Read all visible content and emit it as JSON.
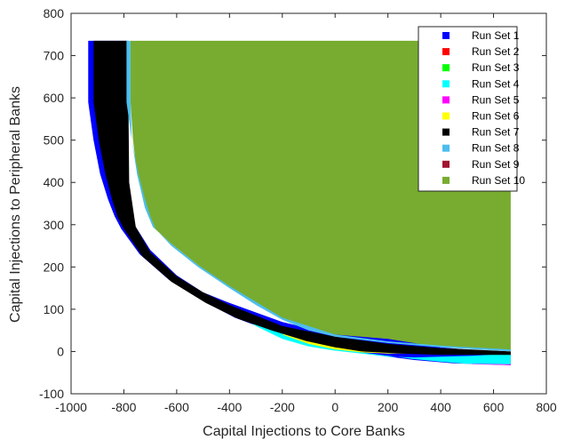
{
  "chart_data": {
    "type": "area",
    "title": "",
    "xlabel": "Capital Injections to Core Banks",
    "ylabel": "Capital Injections to Peripheral Banks",
    "xlim": [
      -1000,
      800
    ],
    "ylim": [
      -100,
      800
    ],
    "xticks": [
      -1000,
      -800,
      -600,
      -400,
      -200,
      0,
      200,
      400,
      600,
      800
    ],
    "yticks": [
      -100,
      0,
      100,
      200,
      300,
      400,
      500,
      600,
      700,
      800
    ],
    "grid": false,
    "legend_position": "top-right",
    "series": [
      {
        "name": "Run Set 1",
        "color": "#0000ff",
        "polygon": [
          [
            -935,
            735
          ],
          [
            -935,
            590
          ],
          [
            -915,
            500
          ],
          [
            -890,
            420
          ],
          [
            -860,
            360
          ],
          [
            -835,
            320
          ],
          [
            -810,
            290
          ],
          [
            -740,
            230
          ],
          [
            -630,
            170
          ],
          [
            -500,
            120
          ],
          [
            -380,
            80
          ],
          [
            -250,
            50
          ],
          [
            -120,
            25
          ],
          [
            0,
            8
          ],
          [
            150,
            -8
          ],
          [
            300,
            -20
          ],
          [
            450,
            -28
          ],
          [
            665,
            -32
          ],
          [
            665,
            -5
          ],
          [
            400,
            10
          ],
          [
            200,
            30
          ],
          [
            0,
            40
          ],
          [
            -200,
            70
          ],
          [
            -400,
            115
          ],
          [
            -500,
            140
          ],
          [
            -600,
            180
          ],
          [
            -700,
            240
          ],
          [
            -760,
            300
          ],
          [
            -790,
            400
          ],
          [
            -790,
            735
          ]
        ]
      },
      {
        "name": "Run Set 2",
        "color": "#ff0000",
        "polygon": []
      },
      {
        "name": "Run Set 3",
        "color": "#00ff00",
        "polygon": []
      },
      {
        "name": "Run Set 4",
        "color": "#00ffff",
        "polygon": [
          [
            665,
            -5
          ],
          [
            520,
            -10
          ],
          [
            400,
            -12
          ],
          [
            300,
            -14
          ],
          [
            200,
            -12
          ],
          [
            100,
            -5
          ],
          [
            0,
            2
          ],
          [
            -100,
            12
          ],
          [
            -200,
            30
          ],
          [
            -300,
            60
          ],
          [
            -400,
            100
          ],
          [
            -300,
            72
          ],
          [
            -200,
            45
          ],
          [
            -100,
            22
          ],
          [
            0,
            8
          ],
          [
            100,
            -2
          ],
          [
            200,
            -10
          ],
          [
            300,
            -18
          ],
          [
            400,
            -24
          ],
          [
            500,
            -29
          ],
          [
            665,
            -30
          ]
        ]
      },
      {
        "name": "Run Set 5",
        "color": "#ff00ff",
        "polygon": [
          [
            665,
            -32
          ],
          [
            520,
            -30
          ],
          [
            450,
            -20
          ],
          [
            540,
            -10
          ],
          [
            665,
            -5
          ]
        ]
      },
      {
        "name": "Run Set 6",
        "color": "#ffff00",
        "polygon": [
          [
            665,
            -5
          ],
          [
            400,
            -2
          ],
          [
            300,
            -5
          ],
          [
            200,
            -5
          ],
          [
            100,
            -2
          ],
          [
            0,
            5
          ],
          [
            -100,
            18
          ],
          [
            -200,
            40
          ],
          [
            -150,
            50
          ],
          [
            -50,
            40
          ],
          [
            50,
            30
          ],
          [
            150,
            20
          ],
          [
            300,
            10
          ],
          [
            450,
            2
          ],
          [
            665,
            0
          ]
        ]
      },
      {
        "name": "Run Set 7",
        "color": "#000000",
        "polygon": [
          [
            -915,
            735
          ],
          [
            -915,
            590
          ],
          [
            -895,
            500
          ],
          [
            -870,
            420
          ],
          [
            -845,
            360
          ],
          [
            -825,
            320
          ],
          [
            -800,
            290
          ],
          [
            -730,
            225
          ],
          [
            -620,
            165
          ],
          [
            -490,
            115
          ],
          [
            -370,
            78
          ],
          [
            -240,
            50
          ],
          [
            -110,
            25
          ],
          [
            0,
            10
          ],
          [
            100,
            0
          ],
          [
            250,
            -5
          ],
          [
            400,
            -8
          ],
          [
            665,
            -8
          ],
          [
            665,
            0
          ],
          [
            400,
            8
          ],
          [
            200,
            18
          ],
          [
            0,
            35
          ],
          [
            -200,
            60
          ],
          [
            -400,
            110
          ],
          [
            -500,
            140
          ],
          [
            -600,
            178
          ],
          [
            -700,
            235
          ],
          [
            -755,
            295
          ],
          [
            -780,
            400
          ],
          [
            -785,
            735
          ]
        ]
      },
      {
        "name": "Run Set 8",
        "color": "#4dbeee",
        "polygon": [
          [
            -790,
            735
          ],
          [
            -790,
            590
          ],
          [
            -770,
            500
          ],
          [
            -745,
            420
          ],
          [
            -720,
            360
          ],
          [
            -700,
            320
          ],
          [
            -680,
            290
          ],
          [
            -620,
            250
          ],
          [
            -520,
            200
          ],
          [
            -400,
            150
          ],
          [
            -300,
            110
          ],
          [
            -200,
            75
          ],
          [
            -100,
            50
          ],
          [
            0,
            35
          ],
          [
            200,
            20
          ],
          [
            400,
            10
          ],
          [
            665,
            0
          ],
          [
            665,
            5
          ],
          [
            400,
            14
          ],
          [
            200,
            24
          ],
          [
            0,
            40
          ],
          [
            -200,
            80
          ],
          [
            -400,
            155
          ],
          [
            -520,
            205
          ],
          [
            -620,
            255
          ],
          [
            -690,
            295
          ],
          [
            -720,
            340
          ],
          [
            -750,
            420
          ],
          [
            -770,
            500
          ],
          [
            -775,
            590
          ],
          [
            -775,
            735
          ]
        ]
      },
      {
        "name": "Run Set 9",
        "color": "#a2142f",
        "polygon": []
      },
      {
        "name": "Run Set 10",
        "color": "#77ac30",
        "polygon": [
          [
            -775,
            735
          ],
          [
            665,
            735
          ],
          [
            665,
            0
          ],
          [
            400,
            12
          ],
          [
            200,
            22
          ],
          [
            0,
            38
          ],
          [
            -200,
            78
          ],
          [
            -400,
            152
          ],
          [
            -520,
            205
          ],
          [
            -620,
            255
          ],
          [
            -690,
            295
          ],
          [
            -720,
            340
          ],
          [
            -750,
            420
          ],
          [
            -765,
            500
          ],
          [
            -775,
            590
          ]
        ]
      }
    ]
  }
}
